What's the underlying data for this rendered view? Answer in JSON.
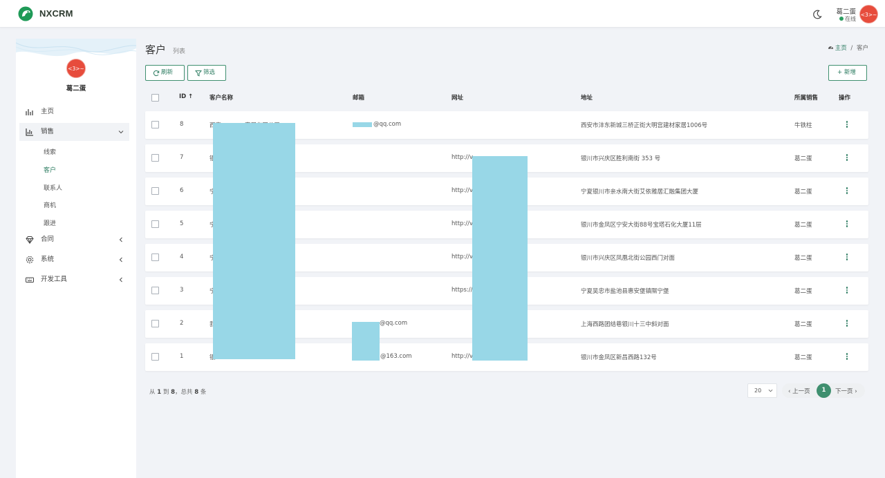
{
  "app": {
    "brand": "NXCRM"
  },
  "header": {
    "user_name": "葛二蛋",
    "user_status": "在线",
    "avatar_text": "<3>~"
  },
  "sidebar": {
    "user_name": "葛二蛋",
    "avatar_text": "<3>~",
    "items": [
      {
        "label": "主页",
        "icon": "chart-bar-icon"
      },
      {
        "label": "销售",
        "icon": "bar-chart-icon",
        "expanded": true
      },
      {
        "label": "合同",
        "icon": "diamond-icon"
      },
      {
        "label": "系统",
        "icon": "gear-icon"
      },
      {
        "label": "开发工具",
        "icon": "keyboard-icon"
      }
    ],
    "sales_sub": [
      "线索",
      "客户",
      "联系人",
      "商机",
      "跟进"
    ]
  },
  "page": {
    "title": "客户",
    "subtitle": "列表",
    "breadcrumb_home": "主页",
    "breadcrumb_sep": "/",
    "breadcrumb_current": "客户"
  },
  "toolbar": {
    "refresh_label": "刷新",
    "filter_label": "筛选",
    "add_label": "+ 新增"
  },
  "table": {
    "headers": {
      "id": "ID ↑",
      "name": "客户名称",
      "email": "邮箱",
      "website": "网址",
      "address": "地址",
      "sales": "所属销售",
      "actions": "操作"
    },
    "rows": [
      {
        "id": "8",
        "name": "西安…………家居有限公司",
        "email": "@qq.com",
        "website": "",
        "address": "西安市沣东新城三桥正街大明宫建材家居1006号",
        "sales": "牛铁柱"
      },
      {
        "id": "7",
        "name": "银",
        "email": "",
        "website": "http://v",
        "address": "银川市兴庆区胜利南街 353 号",
        "sales": "葛二蛋"
      },
      {
        "id": "6",
        "name": "宁",
        "email": "",
        "website": "http://v……m/",
        "address": "宁夏银川市亲水南大街艾依雅居汇融集团大厦",
        "sales": "葛二蛋"
      },
      {
        "id": "5",
        "name": "宁",
        "email": "",
        "website": "http://v……/",
        "address": "银川市金凤区宁安大街88号宝塔石化大厦11层",
        "sales": "葛二蛋"
      },
      {
        "id": "4",
        "name": "宁",
        "email": "",
        "website": "http://v",
        "address": "银川市兴庆区凤凰北街公园西门对面",
        "sales": "葛二蛋"
      },
      {
        "id": "3",
        "name": "宁",
        "email": "",
        "website": "https://",
        "address": "宁夏吴忠市盐池县惠安堡镇隰宁堡",
        "sales": "葛二蛋"
      },
      {
        "id": "2",
        "name": "我",
        "email": "@qq.com",
        "website": "",
        "address": "上海西路团结巷银川十三中斜对面",
        "sales": "葛二蛋"
      },
      {
        "id": "1",
        "name": "银",
        "email": "@163.com",
        "website": "http://v……/",
        "address": "银川市金凤区新昌西路132号",
        "sales": "葛二蛋"
      }
    ]
  },
  "footer": {
    "summary_prefix": "从",
    "summary_from": "1",
    "summary_to_word": "到",
    "summary_to": "8",
    "summary_total_word": "，总共",
    "summary_total": "8",
    "summary_suffix": "条",
    "page_size": "20",
    "prev_label": "‹ 上一页",
    "current_page": "1",
    "next_label": "下一页 ›"
  },
  "colors": {
    "accent": "#2e7d62",
    "avatar": "#e74c3c",
    "redaction": "#98d7e7"
  }
}
